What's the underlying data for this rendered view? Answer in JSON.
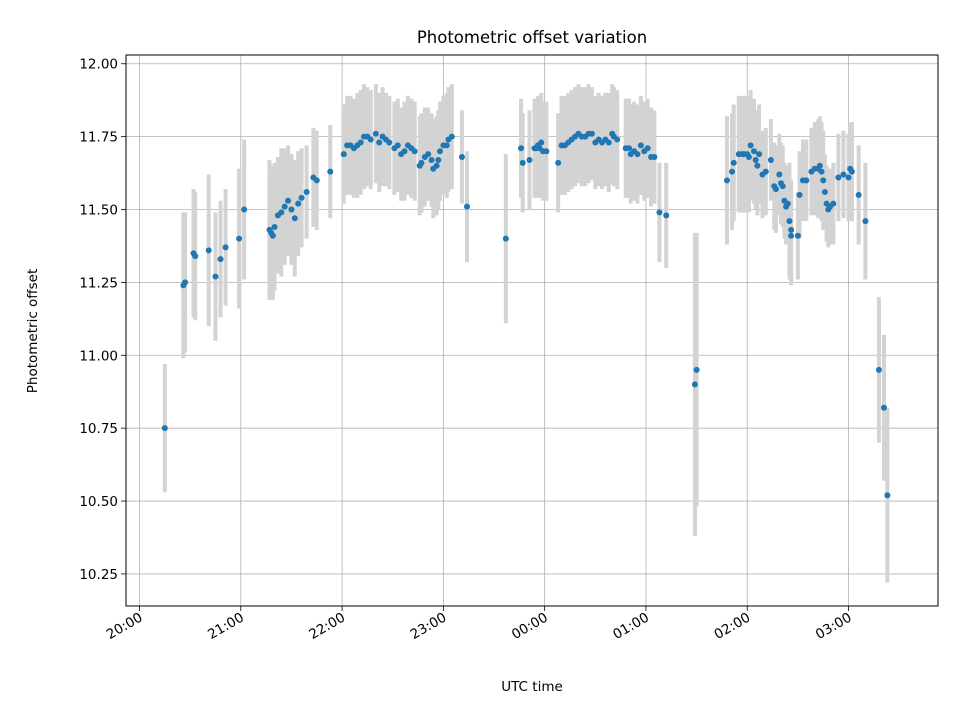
{
  "chart_data": {
    "type": "scatter",
    "title": "Photometric offset variation",
    "xlabel": "UTC time",
    "ylabel": "Photometric offset",
    "x_unit": "minutes after 20:00 UTC",
    "xlim": [
      -8,
      473
    ],
    "ylim": [
      10.14,
      12.03
    ],
    "x_ticks": [
      {
        "value": 0,
        "label": "20:00"
      },
      {
        "value": 60,
        "label": "21:00"
      },
      {
        "value": 120,
        "label": "22:00"
      },
      {
        "value": 180,
        "label": "23:00"
      },
      {
        "value": 240,
        "label": "00:00"
      },
      {
        "value": 300,
        "label": "01:00"
      },
      {
        "value": 360,
        "label": "02:00"
      },
      {
        "value": 420,
        "label": "03:00"
      }
    ],
    "y_ticks": [
      {
        "value": 10.25,
        "label": "10.25"
      },
      {
        "value": 10.5,
        "label": "10.50"
      },
      {
        "value": 10.75,
        "label": "10.75"
      },
      {
        "value": 11.0,
        "label": "11.00"
      },
      {
        "value": 11.25,
        "label": "11.25"
      },
      {
        "value": 11.5,
        "label": "11.50"
      },
      {
        "value": 11.75,
        "label": "11.75"
      },
      {
        "value": 12.0,
        "label": "12.00"
      }
    ],
    "grid": true,
    "marker_color": "#1f77b4",
    "errorbar_color": "#d3d3d3",
    "points": [
      [
        15,
        10.75,
        0.22
      ],
      [
        26,
        11.24,
        0.25
      ],
      [
        27,
        11.25,
        0.24
      ],
      [
        32,
        11.35,
        0.22
      ],
      [
        33,
        11.34,
        0.22
      ],
      [
        41,
        11.36,
        0.26
      ],
      [
        45,
        11.27,
        0.22
      ],
      [
        48,
        11.33,
        0.2
      ],
      [
        51,
        11.37,
        0.2
      ],
      [
        59,
        11.4,
        0.24
      ],
      [
        62,
        11.5,
        0.24
      ],
      [
        77,
        11.43,
        0.24
      ],
      [
        78,
        11.42,
        0.23
      ],
      [
        79,
        11.41,
        0.22
      ],
      [
        80,
        11.44,
        0.22
      ],
      [
        82,
        11.48,
        0.2
      ],
      [
        84,
        11.49,
        0.22
      ],
      [
        86,
        11.51,
        0.2
      ],
      [
        88,
        11.53,
        0.19
      ],
      [
        90,
        11.5,
        0.19
      ],
      [
        92,
        11.47,
        0.2
      ],
      [
        94,
        11.52,
        0.18
      ],
      [
        96,
        11.54,
        0.17
      ],
      [
        99,
        11.56,
        0.16
      ],
      [
        103,
        11.61,
        0.17
      ],
      [
        105,
        11.6,
        0.17
      ],
      [
        113,
        11.63,
        0.16
      ],
      [
        121,
        11.69,
        0.17
      ],
      [
        123,
        11.72,
        0.17
      ],
      [
        125,
        11.72,
        0.17
      ],
      [
        127,
        11.71,
        0.17
      ],
      [
        129,
        11.72,
        0.18
      ],
      [
        131,
        11.73,
        0.18
      ],
      [
        133,
        11.75,
        0.18
      ],
      [
        135,
        11.75,
        0.17
      ],
      [
        137,
        11.74,
        0.17
      ],
      [
        140,
        11.76,
        0.17
      ],
      [
        142,
        11.73,
        0.17
      ],
      [
        144,
        11.75,
        0.17
      ],
      [
        146,
        11.74,
        0.16
      ],
      [
        148,
        11.73,
        0.16
      ],
      [
        151,
        11.71,
        0.16
      ],
      [
        153,
        11.72,
        0.16
      ],
      [
        155,
        11.69,
        0.16
      ],
      [
        157,
        11.7,
        0.17
      ],
      [
        159,
        11.72,
        0.17
      ],
      [
        161,
        11.71,
        0.17
      ],
      [
        163,
        11.7,
        0.17
      ],
      [
        166,
        11.65,
        0.17
      ],
      [
        167,
        11.66,
        0.17
      ],
      [
        169,
        11.68,
        0.17
      ],
      [
        171,
        11.69,
        0.16
      ],
      [
        173,
        11.67,
        0.16
      ],
      [
        174,
        11.64,
        0.17
      ],
      [
        176,
        11.65,
        0.17
      ],
      [
        177,
        11.67,
        0.17
      ],
      [
        178,
        11.7,
        0.17
      ],
      [
        180,
        11.72,
        0.17
      ],
      [
        182,
        11.72,
        0.18
      ],
      [
        183,
        11.74,
        0.18
      ],
      [
        185,
        11.75,
        0.18
      ],
      [
        191,
        11.68,
        0.16
      ],
      [
        194,
        11.51,
        0.19
      ],
      [
        217,
        11.4,
        0.29
      ],
      [
        226,
        11.71,
        0.17
      ],
      [
        227,
        11.66,
        0.17
      ],
      [
        231,
        11.67,
        0.17
      ],
      [
        234,
        11.71,
        0.17
      ],
      [
        235,
        11.71,
        0.17
      ],
      [
        236,
        11.72,
        0.17
      ],
      [
        237,
        11.71,
        0.17
      ],
      [
        238,
        11.73,
        0.17
      ],
      [
        239,
        11.7,
        0.17
      ],
      [
        241,
        11.7,
        0.17
      ],
      [
        248,
        11.66,
        0.17
      ],
      [
        250,
        11.72,
        0.17
      ],
      [
        252,
        11.72,
        0.17
      ],
      [
        254,
        11.73,
        0.17
      ],
      [
        256,
        11.74,
        0.17
      ],
      [
        258,
        11.75,
        0.17
      ],
      [
        260,
        11.76,
        0.17
      ],
      [
        262,
        11.75,
        0.17
      ],
      [
        264,
        11.75,
        0.17
      ],
      [
        266,
        11.76,
        0.17
      ],
      [
        268,
        11.76,
        0.16
      ],
      [
        270,
        11.73,
        0.16
      ],
      [
        272,
        11.74,
        0.16
      ],
      [
        274,
        11.73,
        0.16
      ],
      [
        276,
        11.74,
        0.16
      ],
      [
        278,
        11.73,
        0.17
      ],
      [
        280,
        11.76,
        0.17
      ],
      [
        281,
        11.75,
        0.17
      ],
      [
        283,
        11.74,
        0.17
      ],
      [
        288,
        11.71,
        0.17
      ],
      [
        290,
        11.71,
        0.17
      ],
      [
        291,
        11.69,
        0.17
      ],
      [
        293,
        11.7,
        0.17
      ],
      [
        295,
        11.69,
        0.17
      ],
      [
        297,
        11.72,
        0.17
      ],
      [
        299,
        11.7,
        0.17
      ],
      [
        301,
        11.71,
        0.17
      ],
      [
        303,
        11.68,
        0.17
      ],
      [
        305,
        11.68,
        0.16
      ],
      [
        308,
        11.49,
        0.17
      ],
      [
        312,
        11.48,
        0.18
      ],
      [
        329,
        10.9,
        0.52
      ],
      [
        330,
        10.95,
        0.47
      ],
      [
        348,
        11.6,
        0.22
      ],
      [
        351,
        11.63,
        0.2
      ],
      [
        352,
        11.66,
        0.2
      ],
      [
        355,
        11.69,
        0.2
      ],
      [
        357,
        11.69,
        0.2
      ],
      [
        358,
        11.69,
        0.2
      ],
      [
        360,
        11.69,
        0.2
      ],
      [
        361,
        11.68,
        0.19
      ],
      [
        362,
        11.72,
        0.19
      ],
      [
        364,
        11.7,
        0.18
      ],
      [
        365,
        11.67,
        0.17
      ],
      [
        366,
        11.65,
        0.17
      ],
      [
        367,
        11.69,
        0.17
      ],
      [
        369,
        11.62,
        0.15
      ],
      [
        371,
        11.63,
        0.15
      ],
      [
        374,
        11.67,
        0.14
      ],
      [
        376,
        11.58,
        0.15
      ],
      [
        377,
        11.57,
        0.15
      ],
      [
        379,
        11.62,
        0.14
      ],
      [
        380,
        11.59,
        0.14
      ],
      [
        381,
        11.58,
        0.14
      ],
      [
        382,
        11.53,
        0.13
      ],
      [
        383,
        11.51,
        0.13
      ],
      [
        384,
        11.52,
        0.13
      ],
      [
        385,
        11.46,
        0.2
      ],
      [
        386,
        11.41,
        0.17
      ],
      [
        386,
        11.43,
        0.17
      ],
      [
        390,
        11.41,
        0.15
      ],
      [
        391,
        11.55,
        0.15
      ],
      [
        393,
        11.6,
        0.14
      ],
      [
        395,
        11.6,
        0.14
      ],
      [
        398,
        11.63,
        0.15
      ],
      [
        400,
        11.64,
        0.16
      ],
      [
        402,
        11.64,
        0.17
      ],
      [
        403,
        11.65,
        0.17
      ],
      [
        404,
        11.63,
        0.17
      ],
      [
        405,
        11.6,
        0.17
      ],
      [
        406,
        11.56,
        0.13
      ],
      [
        407,
        11.52,
        0.13
      ],
      [
        408,
        11.5,
        0.13
      ],
      [
        409,
        11.51,
        0.13
      ],
      [
        411,
        11.52,
        0.14
      ],
      [
        414,
        11.61,
        0.15
      ],
      [
        417,
        11.62,
        0.15
      ],
      [
        420,
        11.61,
        0.15
      ],
      [
        421,
        11.64,
        0.16
      ],
      [
        422,
        11.63,
        0.17
      ],
      [
        426,
        11.55,
        0.17
      ],
      [
        430,
        11.46,
        0.2
      ],
      [
        438,
        10.95,
        0.25
      ],
      [
        441,
        10.82,
        0.25
      ],
      [
        443,
        10.52,
        0.3
      ]
    ]
  }
}
